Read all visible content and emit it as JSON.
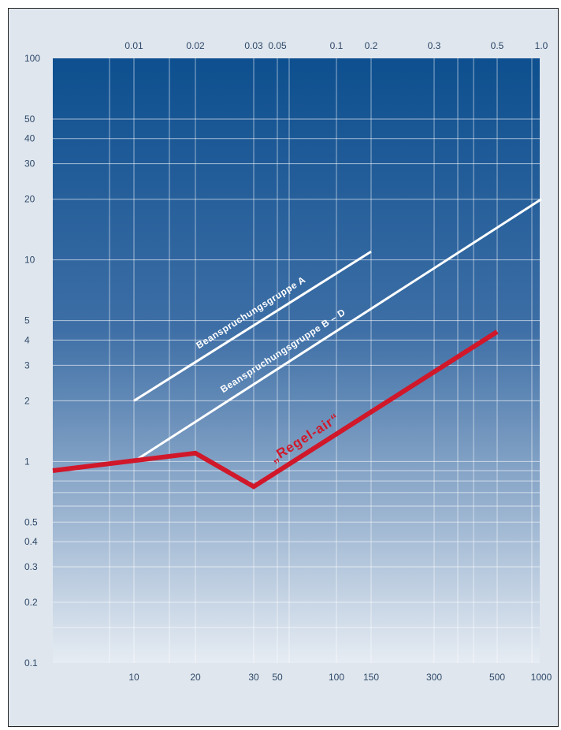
{
  "chart_data": {
    "type": "line",
    "title": "",
    "xlabel": "",
    "ylabel": "",
    "x_bottom_ticks": [
      "10",
      "20",
      "30",
      "50",
      "100",
      "150",
      "300",
      "500",
      "1000"
    ],
    "x_top_ticks": [
      "0.01",
      "0.02",
      "0.03",
      "0.05",
      "0.1",
      "0.2",
      "0.3",
      "0.5",
      "1.0"
    ],
    "y_ticks": [
      "100",
      "50",
      "40",
      "30",
      "20",
      "10",
      "5",
      "4",
      "3",
      "2",
      "1",
      "0.5",
      "0.4",
      "0.3",
      "0.2",
      "0.1"
    ],
    "ylim": [
      0.1,
      100
    ],
    "y_scale": "log",
    "grid": true,
    "series": [
      {
        "name": "Beanspruchungsgruppe A",
        "color": "#ffffff",
        "x": [
          "10",
          "150"
        ],
        "y": [
          2,
          11
        ]
      },
      {
        "name": "Beanspruchungsgruppe B – D",
        "color": "#ffffff",
        "x": [
          "10",
          "1000"
        ],
        "y": [
          1,
          20
        ]
      },
      {
        "name": "„Regel-air“",
        "color": "#d0182a",
        "x": [
          "10",
          "20",
          "30",
          "500"
        ],
        "y": [
          0.9,
          1.1,
          0.75,
          4.4
        ]
      }
    ]
  },
  "colors": {
    "plot_top": "#0d4f8f",
    "plot_bottom": "#e6ecf3",
    "frame_bg": "#dfe6ee",
    "tick_text": "#2f4968"
  }
}
